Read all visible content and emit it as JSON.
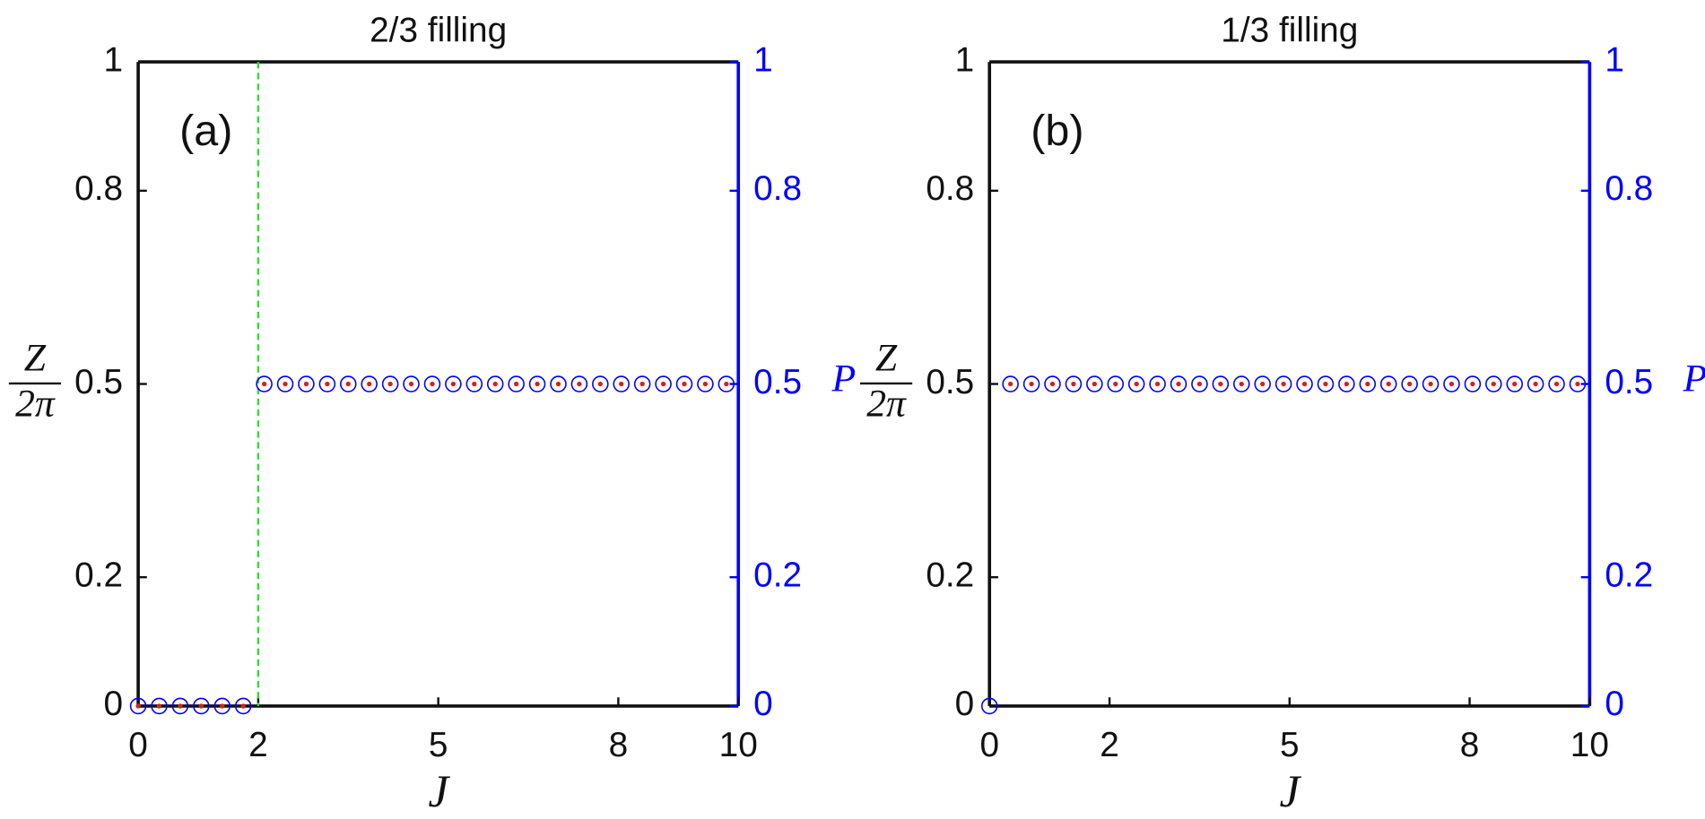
{
  "chart_data": [
    {
      "type": "scatter",
      "title": "2/3 filling",
      "annotation": "(a)",
      "xlabel": "J",
      "ylabel_numerator": "Z",
      "ylabel_denominator": "2π",
      "y2label": "P",
      "x": [
        0,
        0.35,
        0.7,
        1.05,
        1.4,
        1.75,
        2.1,
        2.45,
        2.8,
        3.15,
        3.5,
        3.85,
        4.2,
        4.55,
        4.9,
        5.25,
        5.6,
        5.95,
        6.3,
        6.65,
        7,
        7.35,
        7.7,
        8.05,
        8.4,
        8.75,
        9.1,
        9.45,
        9.8
      ],
      "series": [
        {
          "color": "#0000ff",
          "marker": "circle",
          "axis": "y2",
          "values": [
            0,
            0,
            0,
            0,
            0,
            0,
            0.5,
            0.5,
            0.5,
            0.5,
            0.5,
            0.5,
            0.5,
            0.5,
            0.5,
            0.5,
            0.5,
            0.5,
            0.5,
            0.5,
            0.5,
            0.5,
            0.5,
            0.5,
            0.5,
            0.5,
            0.5,
            0.5,
            0.5
          ]
        },
        {
          "color": "#d62020",
          "marker": "dot",
          "values": [
            0,
            0,
            0,
            0,
            0,
            0,
            0.5,
            0.5,
            0.5,
            0.5,
            0.5,
            0.5,
            0.5,
            0.5,
            0.5,
            0.5,
            0.5,
            0.5,
            0.5,
            0.5,
            0.5,
            0.5,
            0.5,
            0.5,
            0.5,
            0.5,
            0.5,
            0.5,
            0.5
          ]
        }
      ],
      "vline": {
        "x": 2,
        "color": "#33dd33"
      },
      "xlim": [
        0,
        10
      ],
      "xticks": [
        0,
        2,
        5,
        8,
        10
      ],
      "ylim": [
        0,
        1
      ],
      "yticks": [
        0,
        0.2,
        0.5,
        0.8,
        1
      ],
      "y2lim": [
        0,
        1
      ],
      "y2ticks": [
        0,
        0.2,
        0.5,
        0.8,
        1
      ],
      "y2color": "#0000ff"
    },
    {
      "type": "scatter",
      "title": "1/3 filling",
      "annotation": "(b)",
      "xlabel": "J",
      "ylabel_numerator": "Z",
      "ylabel_denominator": "2π",
      "y2label": "P",
      "x": [
        0,
        0.35,
        0.7,
        1.05,
        1.4,
        1.75,
        2.1,
        2.45,
        2.8,
        3.15,
        3.5,
        3.85,
        4.2,
        4.55,
        4.9,
        5.25,
        5.6,
        5.95,
        6.3,
        6.65,
        7,
        7.35,
        7.7,
        8.05,
        8.4,
        8.75,
        9.1,
        9.45,
        9.8
      ],
      "series": [
        {
          "color": "#0000ff",
          "marker": "circle",
          "axis": "y2",
          "values": [
            0,
            0.5,
            0.5,
            0.5,
            0.5,
            0.5,
            0.5,
            0.5,
            0.5,
            0.5,
            0.5,
            0.5,
            0.5,
            0.5,
            0.5,
            0.5,
            0.5,
            0.5,
            0.5,
            0.5,
            0.5,
            0.5,
            0.5,
            0.5,
            0.5,
            0.5,
            0.5,
            0.5,
            0.5
          ]
        },
        {
          "color": "#d62020",
          "marker": "dot",
          "values": [
            null,
            0.5,
            0.5,
            0.5,
            0.5,
            0.5,
            0.5,
            0.5,
            0.5,
            0.5,
            0.5,
            0.5,
            0.5,
            0.5,
            0.5,
            0.5,
            0.5,
            0.5,
            0.5,
            0.5,
            0.5,
            0.5,
            0.5,
            0.5,
            0.5,
            0.5,
            0.5,
            0.5,
            0.5
          ]
        }
      ],
      "xlim": [
        0,
        10
      ],
      "xticks": [
        0,
        2,
        5,
        8,
        10
      ],
      "ylim": [
        0,
        1
      ],
      "yticks": [
        0,
        0.2,
        0.5,
        0.8,
        1
      ],
      "y2lim": [
        0,
        1
      ],
      "y2ticks": [
        0,
        0.2,
        0.5,
        0.8,
        1
      ],
      "y2color": "#0000ff"
    }
  ]
}
